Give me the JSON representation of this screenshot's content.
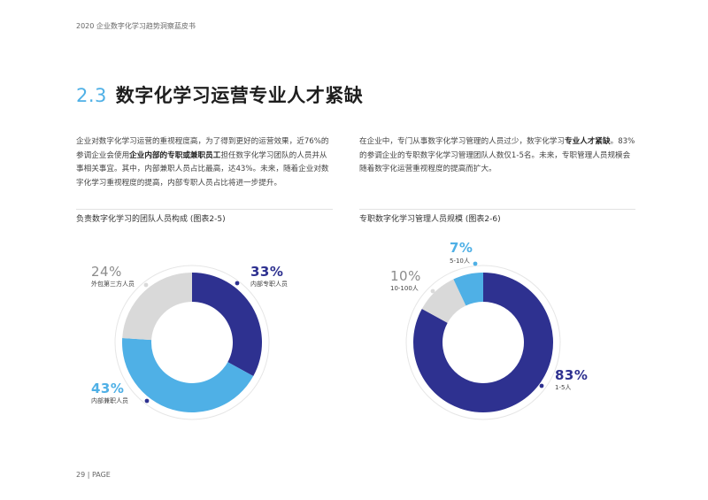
{
  "header": {
    "title": "2020 企业数字化学习趋势洞察蓝皮书"
  },
  "section": {
    "number": "2.3",
    "title": "数字化学习运营专业人才紧缺"
  },
  "left_text": {
    "p1": "企业对数字化学习运营的重视程度高，为了得到更好的运营效果，近76%的参调企业会使用",
    "bold": "企业内部的专职或兼职员工",
    "p2": "担任数字化学习团队的人员并从事相关事宜。其中，内部兼职人员占比最高，达43%。未来，随着企业对数字化学习重视程度的提高，内部专职人员占比将进一步提升。"
  },
  "right_text": {
    "p1": "在企业中，专门从事数字化学习管理的人员过少，数字化学习",
    "bold": "专业人才紧缺",
    "p2": "。83%的参调企业的专职数字化学习管理团队人数仅1-5名。未来，专职管理人员规模会随着数字化运营重视程度的提高而扩大。"
  },
  "footer": {
    "page": "29 | PAGE"
  },
  "colors": {
    "navy": "#2e3190",
    "lightblue": "#4fb0e6",
    "grey": "#d9d9d9",
    "accent": "#4fb0e6"
  },
  "chart_data": [
    {
      "type": "pie",
      "title": "负责数字化学习的团队人员构成 (图表2-5)",
      "labels": [
        "内部专职人员",
        "内部兼职人员",
        "外包第三方人员"
      ],
      "values": [
        33,
        43,
        24
      ],
      "display": [
        "33%",
        "43%",
        "24%"
      ],
      "colors": [
        "#2e3190",
        "#4fb0e6",
        "#d9d9d9"
      ]
    },
    {
      "type": "pie",
      "title": "专职数字化学习管理人员规模 (图表2-6)",
      "labels": [
        "1-5人",
        "10-100人",
        "5-10人"
      ],
      "values": [
        83,
        10,
        7
      ],
      "display": [
        "83%",
        "10%",
        "7%"
      ],
      "colors": [
        "#2e3190",
        "#d9d9d9",
        "#4fb0e6"
      ]
    }
  ]
}
